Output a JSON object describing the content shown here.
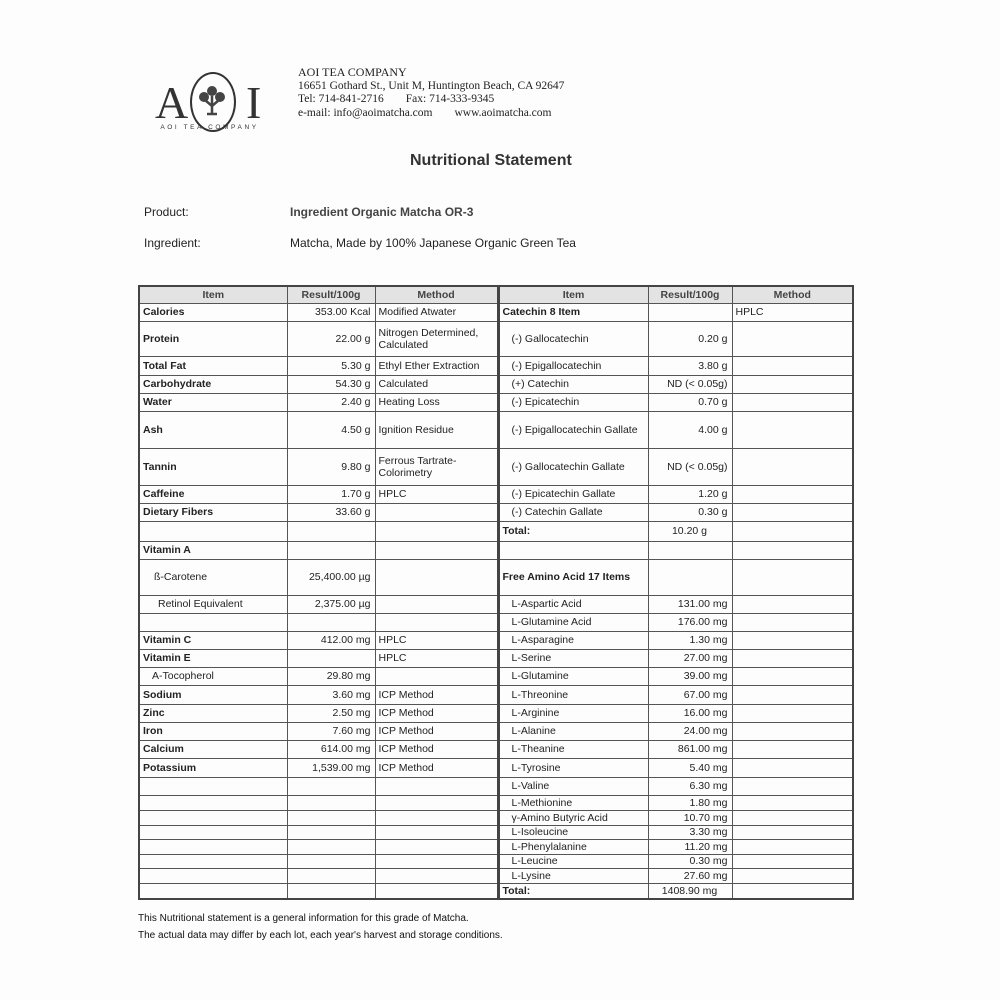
{
  "logo": {
    "letters_left": "A",
    "letters_right": "I",
    "subtitle": "AOI TEA COMPANY"
  },
  "company": {
    "name": "AOI TEA COMPANY",
    "address": "16651 Gothard St., Unit M, Huntington Beach, CA 92647",
    "tel": "Tel: 714-841-2716",
    "fax": "Fax: 714-333-9345",
    "email": "e-mail:  info@aoimatcha.com",
    "web": "www.aoimatcha.com"
  },
  "title": "Nutritional Statement",
  "product": {
    "label": "Product:",
    "value": "Ingredient Organic Matcha OR-3"
  },
  "ingredient": {
    "label": "Ingredient:",
    "value": "Matcha, Made by 100% Japanese Organic Green Tea"
  },
  "table": {
    "headers": [
      "Item",
      "Result/100g",
      "Method",
      "Item",
      "Result/100g",
      "Method"
    ],
    "rows": [
      [
        "Calories",
        "353.00 Kcal",
        "Modified Atwater",
        "Catechin 8 Item",
        "",
        "HPLC"
      ],
      [
        "Protein",
        "22.00 g",
        "Nitrogen Determined, Calculated",
        "(-)  Gallocatechin",
        "0.20 g",
        ""
      ],
      [
        "Total Fat",
        "5.30 g",
        "Ethyl Ether Extraction",
        "(-)  Epigallocatechin",
        "3.80 g",
        ""
      ],
      [
        "Carbohydrate",
        "54.30 g",
        "Calculated",
        "(+) Catechin",
        "ND (< 0.05g)",
        ""
      ],
      [
        "Water",
        "2.40 g",
        "Heating Loss",
        "(-)  Epicatechin",
        "0.70 g",
        ""
      ],
      [
        "Ash",
        "4.50 g",
        "Ignition Residue",
        "(-)  Epigallocatechin Gallate",
        "4.00 g",
        ""
      ],
      [
        "Tannin",
        "9.80 g",
        "Ferrous Tartrate-Colorimetry",
        "(-)  Gallocatechin Gallate",
        "ND (< 0.05g)",
        ""
      ],
      [
        "Caffeine",
        "1.70 g",
        "HPLC",
        "(-)  Epicatechin Gallate",
        "1.20 g",
        ""
      ],
      [
        "Dietary Fibers",
        "33.60 g",
        "",
        "(-)  Catechin Gallate",
        "0.30 g",
        ""
      ],
      [
        "",
        "",
        "",
        "Total:",
        "10.20 g",
        ""
      ],
      [
        "Vitamin A",
        "",
        "",
        "",
        "",
        ""
      ],
      [
        "ß-Carotene",
        "25,400.00 µg",
        "",
        "Free Amino Acid 17 Items",
        "",
        ""
      ],
      [
        "Retinol Equivalent",
        "2,375.00 µg",
        "",
        "L-Aspartic Acid",
        "131.00 mg",
        ""
      ],
      [
        "",
        "",
        "",
        "L-Glutamine Acid",
        "176.00 mg",
        ""
      ],
      [
        "Vitamin C",
        "412.00 mg",
        "HPLC",
        "L-Asparagine",
        "1.30 mg",
        ""
      ],
      [
        "Vitamin E",
        "",
        "HPLC",
        "L-Serine",
        "27.00 mg",
        ""
      ],
      [
        "A-Tocopherol",
        "29.80 mg",
        "",
        "L-Glutamine",
        "39.00 mg",
        ""
      ],
      [
        "Sodium",
        "3.60 mg",
        "ICP Method",
        "L-Threonine",
        "67.00 mg",
        ""
      ],
      [
        "Zinc",
        "2.50 mg",
        "ICP Method",
        "L-Arginine",
        "16.00 mg",
        ""
      ],
      [
        "Iron",
        "7.60 mg",
        "ICP Method",
        "L-Alanine",
        "24.00 mg",
        ""
      ],
      [
        "Calcium",
        "614.00 mg",
        "ICP Method",
        "L-Theanine",
        "861.00 mg",
        ""
      ],
      [
        "Potassium",
        "1,539.00 mg",
        "ICP Method",
        "L-Tyrosine",
        "5.40 mg",
        ""
      ],
      [
        "",
        "",
        "",
        "L-Valine",
        "6.30 mg",
        ""
      ],
      [
        "",
        "",
        "",
        "L-Methionine",
        "1.80 mg",
        ""
      ],
      [
        "",
        "",
        "",
        "γ-Amino Butyric Acid",
        "10.70 mg",
        ""
      ],
      [
        "",
        "",
        "",
        "L-Isoleucine",
        "3.30 mg",
        ""
      ],
      [
        "",
        "",
        "",
        "L-Phenylalanine",
        "11.20 mg",
        ""
      ],
      [
        "",
        "",
        "",
        "L-Leucine",
        "0.30 mg",
        ""
      ],
      [
        "",
        "",
        "",
        "L-Lysine",
        "27.60 mg",
        ""
      ],
      [
        "",
        "",
        "",
        "Total:",
        "1408.90 mg",
        ""
      ]
    ]
  },
  "footer": {
    "line1": "This Nutritional statement is a general information for this grade of Matcha.",
    "line2": "The actual data may differ by each lot, each year's harvest and storage conditions."
  }
}
